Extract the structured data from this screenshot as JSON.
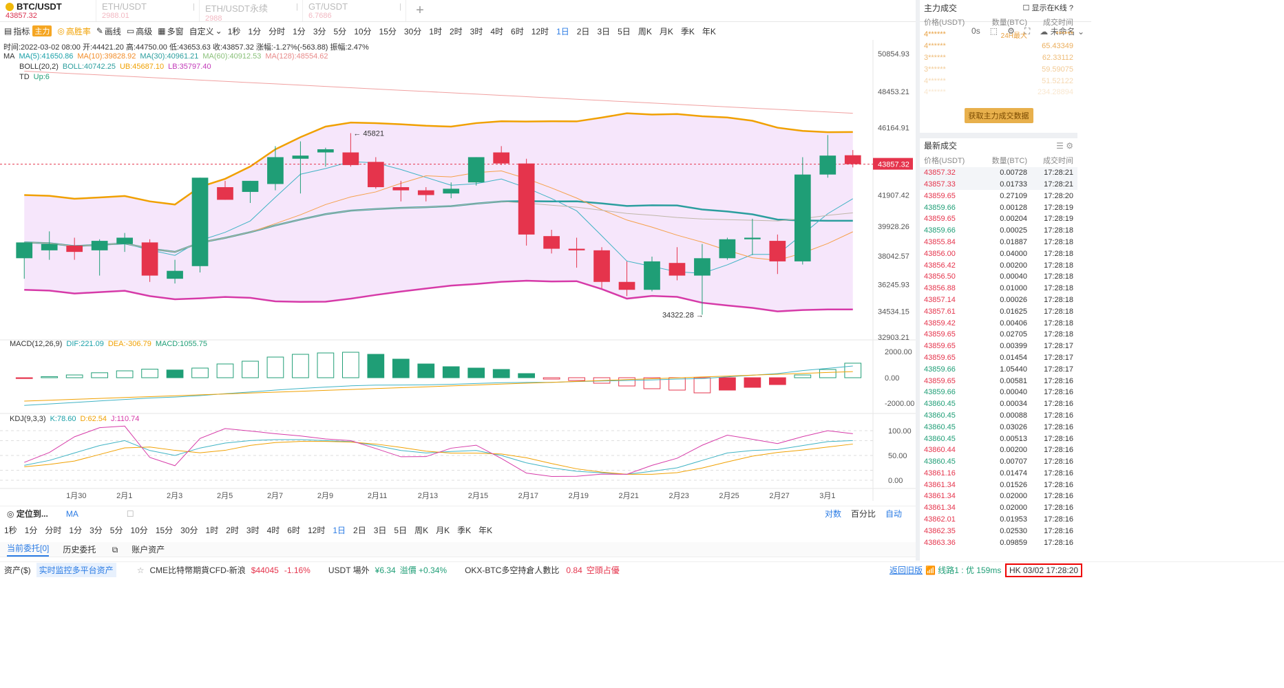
{
  "tabs": [
    {
      "symbol": "BTC/USDT",
      "price": "43857.32",
      "active": true
    },
    {
      "symbol": "ETH/USDT",
      "price": "2988.01",
      "active": false
    },
    {
      "symbol": "ETH/USDT永续",
      "price": "2988",
      "active": false
    },
    {
      "symbol": "GT/USDT",
      "price": "6.7686",
      "active": false
    }
  ],
  "toolbar": {
    "indicators": "指标",
    "main_badge": "主力",
    "win_rate": "高胜率",
    "draw": "画线",
    "advanced": "高级",
    "multi": "多窗",
    "custom": "自定义",
    "intervals": [
      "1秒",
      "1分",
      "分时",
      "1分",
      "3分",
      "5分",
      "10分",
      "15分",
      "30分",
      "1时",
      "2时",
      "3时",
      "4时",
      "6时",
      "12时",
      "1日",
      "2日",
      "3日",
      "5日",
      "周K",
      "月K",
      "季K",
      "年K"
    ],
    "selected_interval": "1日",
    "right_label_0s": "0s",
    "unnamed": "未命名"
  },
  "chart_info": {
    "line1": "时间:2022-03-02 08:00  开:44421.20  高:44750.00  低:43653.63  收:43857.32  涨幅:-1.27%(-563.88)  振幅:2.47%",
    "ma": [
      "MA",
      "MA(5):41650.86",
      "MA(10):39828.92",
      "MA(30):40961.21",
      "MA(60):40912.53",
      "MA(128):48554.62"
    ],
    "boll": [
      "BOLL(20,2)",
      "BOLL:40742.25",
      "UB:45687.10",
      "LB:35797.40"
    ],
    "td": [
      "TD",
      "Up:6"
    ],
    "macd": [
      "MACD(12,26,9)",
      "DIF:221.09",
      "DEA:-306.79",
      "MACD:1055.75"
    ],
    "kdj": [
      "KDJ(9,3,3)",
      "K:78.60",
      "D:62.54",
      "J:110.74"
    ],
    "price_axis": [
      "50854.93",
      "48453.21",
      "46164.91",
      "43857.32",
      "41907.42",
      "39928.26",
      "38042.57",
      "36245.93",
      "34534.15",
      "32903.21"
    ],
    "macd_axis": [
      "2000.00",
      "0.00",
      "-2000.00"
    ],
    "kdj_axis": [
      "100.00",
      "50.00",
      "0.00"
    ],
    "x_axis": [
      "1月30",
      "2月1",
      "2月3",
      "2月5",
      "2月7",
      "2月9",
      "2月11",
      "2月13",
      "2月15",
      "2月17",
      "2月19",
      "2月21",
      "2月23",
      "2月25",
      "2月27",
      "3月1"
    ],
    "high_label": "45821",
    "low_label": "34322.28",
    "current_price": "43857.32"
  },
  "chart_data": {
    "type": "candlestick",
    "candles": [
      [
        37900,
        38900,
        36600,
        38900
      ],
      [
        38400,
        39600,
        37800,
        38800
      ],
      [
        38700,
        39200,
        37800,
        38300
      ],
      [
        38400,
        39100,
        36800,
        39000
      ],
      [
        38800,
        39500,
        38300,
        39200
      ],
      [
        38900,
        39100,
        36400,
        36800
      ],
      [
        36600,
        37800,
        36300,
        37100
      ],
      [
        37400,
        43000,
        37000,
        43000
      ],
      [
        42400,
        42800,
        41600,
        41600
      ],
      [
        42100,
        42800,
        41400,
        42800
      ],
      [
        42600,
        45000,
        42200,
        44300
      ],
      [
        44200,
        45300,
        42000,
        44400
      ],
      [
        44600,
        44900,
        43700,
        44800
      ],
      [
        44600,
        45821,
        43700,
        43800
      ],
      [
        44000,
        44300,
        42300,
        42400
      ],
      [
        42400,
        42800,
        41500,
        42200
      ],
      [
        42200,
        42400,
        41500,
        41900
      ],
      [
        42000,
        42700,
        41700,
        42300
      ],
      [
        42700,
        44300,
        42500,
        44300
      ],
      [
        44600,
        45000,
        43800,
        43900
      ],
      [
        43900,
        44200,
        38700,
        39400
      ],
      [
        39300,
        39700,
        38200,
        38500
      ],
      [
        38500,
        39200,
        37300,
        38400
      ],
      [
        38400,
        38600,
        36000,
        36400
      ],
      [
        36400,
        37700,
        35500,
        35900
      ],
      [
        35900,
        38000,
        35800,
        37700
      ],
      [
        37600,
        38600,
        36500,
        36800
      ],
      [
        36800,
        38800,
        34322,
        37900
      ],
      [
        37900,
        39200,
        37800,
        39100
      ],
      [
        39100,
        40400,
        38100,
        39200
      ],
      [
        39000,
        39400,
        36900,
        37700
      ],
      [
        37700,
        44300,
        37500,
        43200
      ],
      [
        43200,
        45700,
        43000,
        44400
      ],
      [
        44421,
        44750,
        43653,
        43857
      ]
    ],
    "ylim": [
      32903,
      50855
    ]
  },
  "bottom": {
    "locate": "定位到...",
    "ma": "MA",
    "scale_opts": [
      "对数",
      "百分比",
      "自动"
    ],
    "intervals": [
      "1秒",
      "1分",
      "分时",
      "1分",
      "3分",
      "5分",
      "10分",
      "15分",
      "30分",
      "1时",
      "2时",
      "3时",
      "4时",
      "6时",
      "12时",
      "1日",
      "2日",
      "3日",
      "5日",
      "周K",
      "月K",
      "季K",
      "年K"
    ],
    "order_tabs": [
      "当前委托[0]",
      "历史委托",
      "账户资产"
    ]
  },
  "status": {
    "asset": "资产($)",
    "monitor": "实时监控多平台资产",
    "cme": "CME比特幣期貨CFD-新浪",
    "cme_val": "$44045",
    "cme_pct": "-1.16%",
    "usdt": "USDT 場外",
    "usdt_val": "¥6.34",
    "usdt_prem": "溢價 +0.34%",
    "okx": "OKX-BTC多空持倉人數比",
    "okx_val": "0.84",
    "okx_note": "空頭占優",
    "old": "返回旧版",
    "line": "线路1 : 优 159ms",
    "clock": "HK 03/02 17:28:20"
  },
  "right_panel": {
    "main_title": "主力成交",
    "show_in_k": "显示在K线",
    "cols": [
      "价格(USDT)",
      "数量(BTC)",
      "成交时间"
    ],
    "main_rows": [
      [
        "4******",
        "24H最大",
        "******"
      ],
      [
        "4******",
        "",
        "65.43349"
      ],
      [
        "3******",
        "",
        "62.33112"
      ],
      [
        "3******",
        "",
        "59.59075"
      ],
      [
        "4******",
        "",
        "51.52122"
      ],
      [
        "4******",
        "",
        "234.28894"
      ]
    ],
    "get_btn": "获取主力成交数据",
    "latest_title": "最新成交",
    "trades": [
      [
        "43857.32",
        "0.00728",
        "17:28:21",
        "r"
      ],
      [
        "43857.33",
        "0.01733",
        "17:28:21",
        "r"
      ],
      [
        "43859.65",
        "0.27109",
        "17:28:20",
        "r"
      ],
      [
        "43859.66",
        "0.00128",
        "17:28:19",
        "g"
      ],
      [
        "43859.65",
        "0.00204",
        "17:28:19",
        "r"
      ],
      [
        "43859.66",
        "0.00025",
        "17:28:18",
        "g"
      ],
      [
        "43855.84",
        "0.01887",
        "17:28:18",
        "r"
      ],
      [
        "43856.00",
        "0.04000",
        "17:28:18",
        "r"
      ],
      [
        "43856.42",
        "0.00200",
        "17:28:18",
        "r"
      ],
      [
        "43856.50",
        "0.00040",
        "17:28:18",
        "r"
      ],
      [
        "43856.88",
        "0.01000",
        "17:28:18",
        "r"
      ],
      [
        "43857.14",
        "0.00026",
        "17:28:18",
        "r"
      ],
      [
        "43857.61",
        "0.01625",
        "17:28:18",
        "r"
      ],
      [
        "43859.42",
        "0.00406",
        "17:28:18",
        "r"
      ],
      [
        "43859.65",
        "0.02705",
        "17:28:18",
        "r"
      ],
      [
        "43859.65",
        "0.00399",
        "17:28:17",
        "r"
      ],
      [
        "43859.65",
        "0.01454",
        "17:28:17",
        "r"
      ],
      [
        "43859.66",
        "1.05440",
        "17:28:17",
        "g"
      ],
      [
        "43859.65",
        "0.00581",
        "17:28:16",
        "r"
      ],
      [
        "43859.66",
        "0.00040",
        "17:28:16",
        "g"
      ],
      [
        "43860.45",
        "0.00034",
        "17:28:16",
        "g"
      ],
      [
        "43860.45",
        "0.00088",
        "17:28:16",
        "g"
      ],
      [
        "43860.45",
        "0.03026",
        "17:28:16",
        "g"
      ],
      [
        "43860.45",
        "0.00513",
        "17:28:16",
        "g"
      ],
      [
        "43860.44",
        "0.00200",
        "17:28:16",
        "r"
      ],
      [
        "43860.45",
        "0.00707",
        "17:28:16",
        "g"
      ],
      [
        "43861.16",
        "0.01474",
        "17:28:16",
        "r"
      ],
      [
        "43861.34",
        "0.01526",
        "17:28:16",
        "r"
      ],
      [
        "43861.34",
        "0.02000",
        "17:28:16",
        "r"
      ],
      [
        "43861.34",
        "0.02000",
        "17:28:16",
        "r"
      ],
      [
        "43862.01",
        "0.01953",
        "17:28:16",
        "r"
      ],
      [
        "43862.35",
        "0.02530",
        "17:28:16",
        "r"
      ],
      [
        "43863.36",
        "0.09859",
        "17:28:16",
        "r"
      ]
    ]
  },
  "colors": {
    "up": "#1f9e76",
    "down": "#e5344c",
    "boll_band": "#f6e6fb",
    "accent": "#2a7be4"
  }
}
